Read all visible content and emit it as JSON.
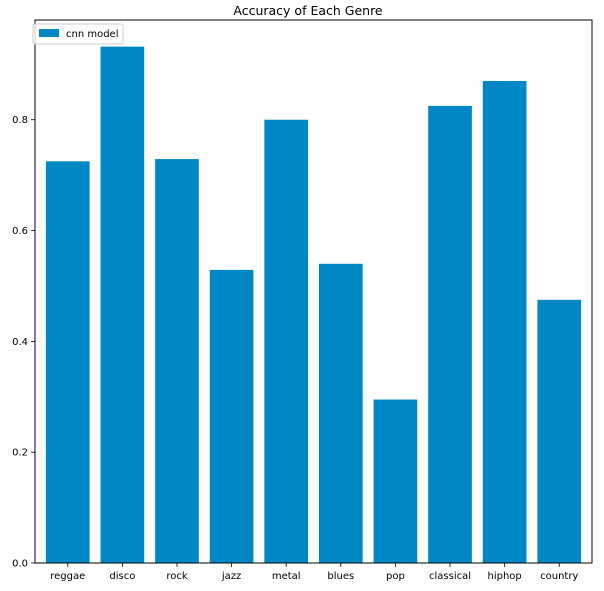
{
  "chart_data": {
    "type": "bar",
    "title": "Accuracy of Each Genre",
    "xlabel": "",
    "ylabel": "",
    "categories": [
      "reggae",
      "disco",
      "rock",
      "jazz",
      "metal",
      "blues",
      "pop",
      "classical",
      "hiphop",
      "country"
    ],
    "series": [
      {
        "name": "cnn model",
        "color": "#0088c6",
        "values": [
          0.725,
          0.932,
          0.729,
          0.529,
          0.8,
          0.54,
          0.295,
          0.825,
          0.87,
          0.475
        ]
      }
    ],
    "ylim": [
      0,
      0.98
    ],
    "yticks": [
      0.0,
      0.2,
      0.4,
      0.6,
      0.8
    ],
    "ytick_labels": [
      "0.0",
      "0.2",
      "0.4",
      "0.6",
      "0.8"
    ],
    "grid": false,
    "legend": {
      "position": "top-left",
      "entries": [
        "cnn model"
      ]
    }
  }
}
